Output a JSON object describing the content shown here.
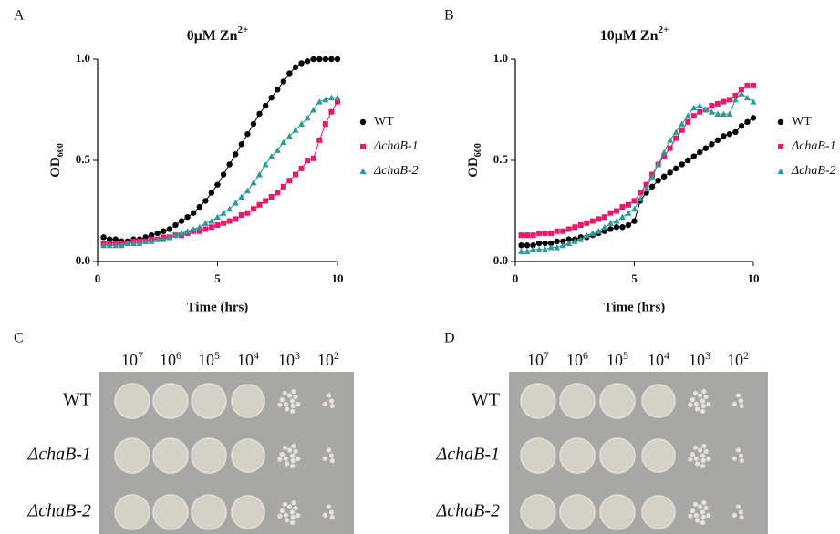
{
  "panel_labels": [
    "A",
    "B",
    "C",
    "D"
  ],
  "chart_data": [
    {
      "type": "line",
      "title": {
        "text": "0μM Zn",
        "sup": "2+"
      },
      "y_label": {
        "text": "OD",
        "sub": "600"
      },
      "x_label": "Time (hrs)",
      "xlim": [
        0,
        10
      ],
      "xticks": [
        0,
        5,
        10
      ],
      "ylim": [
        0,
        1
      ],
      "yticks": [
        {
          "value": 0,
          "label": "0.0"
        },
        {
          "value": 0.5,
          "label": "0.5"
        },
        {
          "value": 1,
          "label": "1.0"
        }
      ],
      "x": [
        0.25,
        0.5,
        0.75,
        1,
        1.25,
        1.5,
        1.75,
        2,
        2.25,
        2.5,
        2.75,
        3,
        3.25,
        3.5,
        3.75,
        4,
        4.25,
        4.5,
        4.75,
        5,
        5.25,
        5.5,
        5.75,
        6,
        6.25,
        6.5,
        6.75,
        7,
        7.25,
        7.5,
        7.75,
        8,
        8.25,
        8.5,
        8.75,
        9,
        9.25,
        9.5,
        9.75,
        10
      ],
      "series": [
        {
          "name": "WT",
          "color": "#000000",
          "marker": "circle",
          "values": [
            0.12,
            0.11,
            0.11,
            0.1,
            0.1,
            0.11,
            0.11,
            0.12,
            0.13,
            0.14,
            0.15,
            0.16,
            0.18,
            0.2,
            0.22,
            0.24,
            0.27,
            0.3,
            0.34,
            0.38,
            0.43,
            0.48,
            0.53,
            0.58,
            0.63,
            0.68,
            0.73,
            0.77,
            0.81,
            0.85,
            0.89,
            0.93,
            0.96,
            0.98,
            0.99,
            1.0,
            1.0,
            1.0,
            1.0,
            1.0
          ]
        },
        {
          "name": "ΔchaB-1",
          "color": "#e8196b",
          "marker": "square",
          "values": [
            0.09,
            0.09,
            0.09,
            0.09,
            0.09,
            0.1,
            0.1,
            0.1,
            0.11,
            0.11,
            0.12,
            0.12,
            0.13,
            0.13,
            0.14,
            0.15,
            0.15,
            0.16,
            0.17,
            0.18,
            0.19,
            0.2,
            0.21,
            0.23,
            0.24,
            0.26,
            0.28,
            0.3,
            0.32,
            0.34,
            0.37,
            0.4,
            0.43,
            0.46,
            0.5,
            0.51,
            0.6,
            0.68,
            0.74,
            0.79
          ]
        },
        {
          "name": "ΔchaB-2",
          "color": "#2a9a9a",
          "marker": "triangle",
          "values": [
            0.08,
            0.08,
            0.08,
            0.08,
            0.09,
            0.09,
            0.09,
            0.1,
            0.1,
            0.11,
            0.11,
            0.12,
            0.13,
            0.14,
            0.15,
            0.16,
            0.17,
            0.19,
            0.2,
            0.22,
            0.24,
            0.26,
            0.29,
            0.32,
            0.35,
            0.39,
            0.43,
            0.48,
            0.52,
            0.55,
            0.59,
            0.62,
            0.65,
            0.68,
            0.71,
            0.75,
            0.79,
            0.8,
            0.81,
            0.81
          ]
        }
      ]
    },
    {
      "type": "line",
      "title": {
        "text": "10μM Zn",
        "sup": "2+"
      },
      "y_label": {
        "text": "OD",
        "sub": "600"
      },
      "x_label": "Time (hrs)",
      "xlim": [
        0,
        10
      ],
      "xticks": [
        0,
        5,
        10
      ],
      "ylim": [
        0,
        1
      ],
      "yticks": [
        {
          "value": 0,
          "label": "0.0"
        },
        {
          "value": 0.5,
          "label": "0.5"
        },
        {
          "value": 1,
          "label": "1.0"
        }
      ],
      "x": [
        0.25,
        0.5,
        0.75,
        1,
        1.25,
        1.5,
        1.75,
        2,
        2.25,
        2.5,
        2.75,
        3,
        3.25,
        3.5,
        3.75,
        4,
        4.25,
        4.5,
        4.75,
        5,
        5.25,
        5.5,
        5.75,
        6,
        6.25,
        6.5,
        6.75,
        7,
        7.25,
        7.5,
        7.75,
        8,
        8.25,
        8.5,
        8.75,
        9,
        9.25,
        9.5,
        9.75,
        10
      ],
      "series": [
        {
          "name": "WT",
          "color": "#000000",
          "marker": "circle",
          "values": [
            0.08,
            0.08,
            0.08,
            0.09,
            0.09,
            0.09,
            0.1,
            0.1,
            0.11,
            0.11,
            0.12,
            0.12,
            0.13,
            0.14,
            0.15,
            0.16,
            0.17,
            0.17,
            0.18,
            0.2,
            0.3,
            0.34,
            0.37,
            0.4,
            0.42,
            0.44,
            0.46,
            0.48,
            0.5,
            0.52,
            0.54,
            0.56,
            0.58,
            0.6,
            0.62,
            0.63,
            0.64,
            0.67,
            0.69,
            0.71
          ]
        },
        {
          "name": "ΔchaB-1",
          "color": "#e8196b",
          "marker": "square",
          "values": [
            0.13,
            0.13,
            0.13,
            0.14,
            0.14,
            0.14,
            0.15,
            0.15,
            0.16,
            0.17,
            0.18,
            0.19,
            0.2,
            0.21,
            0.22,
            0.24,
            0.25,
            0.27,
            0.28,
            0.3,
            0.34,
            0.38,
            0.43,
            0.48,
            0.52,
            0.56,
            0.61,
            0.65,
            0.69,
            0.72,
            0.74,
            0.75,
            0.77,
            0.78,
            0.79,
            0.8,
            0.82,
            0.85,
            0.87,
            0.87
          ]
        },
        {
          "name": "ΔchaB-2",
          "color": "#2a9a9a",
          "marker": "triangle",
          "values": [
            0.05,
            0.05,
            0.06,
            0.06,
            0.06,
            0.07,
            0.07,
            0.08,
            0.09,
            0.1,
            0.11,
            0.13,
            0.14,
            0.15,
            0.17,
            0.19,
            0.2,
            0.22,
            0.24,
            0.26,
            0.31,
            0.36,
            0.42,
            0.48,
            0.54,
            0.6,
            0.64,
            0.68,
            0.72,
            0.76,
            0.77,
            0.75,
            0.74,
            0.73,
            0.73,
            0.73,
            0.8,
            0.83,
            0.81,
            0.79
          ]
        }
      ]
    }
  ],
  "plates": [
    {
      "dilutions": [
        {
          "base": "10",
          "exp": "7"
        },
        {
          "base": "10",
          "exp": "6"
        },
        {
          "base": "10",
          "exp": "5"
        },
        {
          "base": "10",
          "exp": "4"
        },
        {
          "base": "10",
          "exp": "3"
        },
        {
          "base": "10",
          "exp": "2"
        }
      ],
      "strains": [
        "WT",
        "ΔchaB-1",
        "ΔchaB-2"
      ]
    },
    {
      "dilutions": [
        {
          "base": "10",
          "exp": "7"
        },
        {
          "base": "10",
          "exp": "6"
        },
        {
          "base": "10",
          "exp": "5"
        },
        {
          "base": "10",
          "exp": "4"
        },
        {
          "base": "10",
          "exp": "3"
        },
        {
          "base": "10",
          "exp": "2"
        }
      ],
      "strains": [
        "WT",
        "ΔchaB-1",
        "ΔchaB-2"
      ]
    }
  ]
}
